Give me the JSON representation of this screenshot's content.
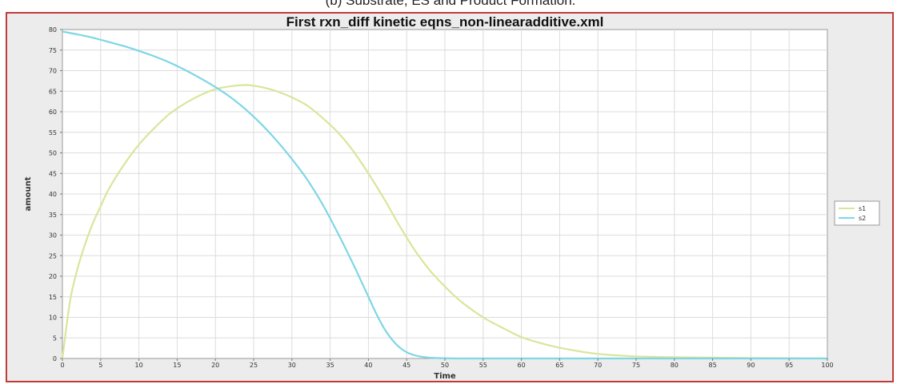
{
  "caption": "(b) Substrate, ES and Product Formation.",
  "chart_data": {
    "type": "line",
    "title": "First rxn_diff kinetic eqns_non-linearadditive.xml",
    "xlabel": "Time",
    "ylabel": "amount",
    "xlim": [
      0,
      100
    ],
    "ylim": [
      0,
      80
    ],
    "xticks": [
      0,
      5,
      10,
      15,
      20,
      25,
      30,
      35,
      40,
      45,
      50,
      55,
      60,
      65,
      70,
      75,
      80,
      85,
      90,
      95,
      100
    ],
    "yticks": [
      0,
      5,
      10,
      15,
      20,
      25,
      30,
      35,
      40,
      45,
      50,
      55,
      60,
      65,
      70,
      75,
      80
    ],
    "grid": true,
    "legend_position": "right",
    "series": [
      {
        "name": "s1",
        "color": "#d8e69a",
        "x": [
          0,
          1,
          2,
          3,
          4,
          5,
          6,
          8,
          10,
          12,
          14,
          16,
          18,
          20,
          22,
          24,
          26,
          28,
          30,
          32,
          34,
          36,
          38,
          40,
          42,
          44,
          46,
          48,
          50,
          52,
          55,
          58,
          60,
          62,
          65,
          68,
          70,
          72,
          75,
          80,
          85,
          90,
          95,
          100
        ],
        "y": [
          0,
          14,
          22,
          28,
          33,
          37,
          41,
          47,
          52,
          56,
          59.5,
          62,
          64,
          65.5,
          66.2,
          66.5,
          66,
          65,
          63.5,
          61.5,
          58.5,
          55,
          50.5,
          45,
          39,
          32.5,
          26.5,
          21.5,
          17.5,
          14,
          10,
          7,
          5.2,
          4,
          2.6,
          1.6,
          1.1,
          0.8,
          0.5,
          0.3,
          0.2,
          0.1,
          0.05,
          0
        ]
      },
      {
        "name": "s2",
        "color": "#7fd6e6",
        "x": [
          0,
          2,
          4,
          6,
          8,
          10,
          12,
          14,
          16,
          18,
          20,
          22,
          24,
          26,
          28,
          30,
          32,
          34,
          36,
          38,
          40,
          41,
          42,
          43,
          44,
          45,
          46,
          47,
          48,
          49,
          50,
          52,
          55,
          60,
          70,
          80,
          90,
          100
        ],
        "y": [
          79.5,
          78.8,
          78,
          77,
          76,
          74.8,
          73.5,
          72,
          70.2,
          68.2,
          66,
          63.5,
          60.5,
          57,
          53,
          48.5,
          43.5,
          37.5,
          30.5,
          23,
          15,
          11,
          7.5,
          4.8,
          2.8,
          1.5,
          0.8,
          0.4,
          0.2,
          0.1,
          0.05,
          0,
          0,
          0,
          0,
          0,
          0,
          0
        ]
      }
    ]
  }
}
